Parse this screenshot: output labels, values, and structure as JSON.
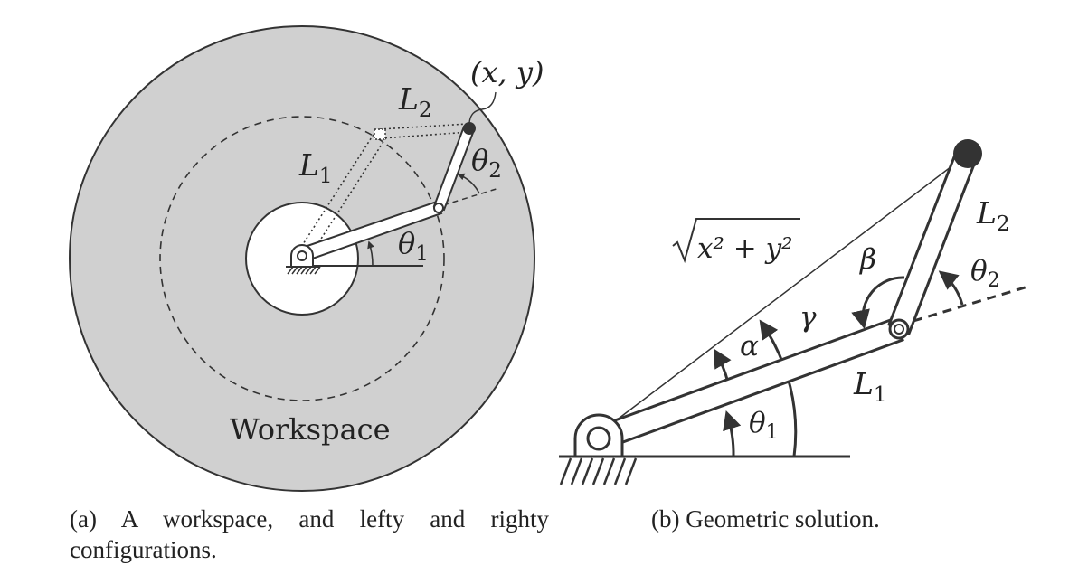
{
  "panel_a": {
    "caption": "(a) A workspace, and lefty and righty configurations.",
    "workspace_label": "Workspace",
    "endpoint_label": "(x, y)",
    "link1": {
      "symbol": "L",
      "sub": "1"
    },
    "link2": {
      "symbol": "L",
      "sub": "2"
    },
    "theta1": {
      "symbol": "θ",
      "sub": "1"
    },
    "theta2": {
      "symbol": "θ",
      "sub": "2"
    }
  },
  "panel_b": {
    "caption": "(b) Geometric solution.",
    "distance_label": "x² + y²",
    "link1": {
      "symbol": "L",
      "sub": "1"
    },
    "link2": {
      "symbol": "L",
      "sub": "2"
    },
    "alpha": "α",
    "beta": "β",
    "gamma": "γ",
    "theta1": {
      "symbol": "θ",
      "sub": "1"
    },
    "theta2": {
      "symbol": "θ",
      "sub": "2"
    }
  },
  "colors": {
    "workspace_fill": "#d0d0d0",
    "stroke": "#333333",
    "white": "#ffffff"
  }
}
